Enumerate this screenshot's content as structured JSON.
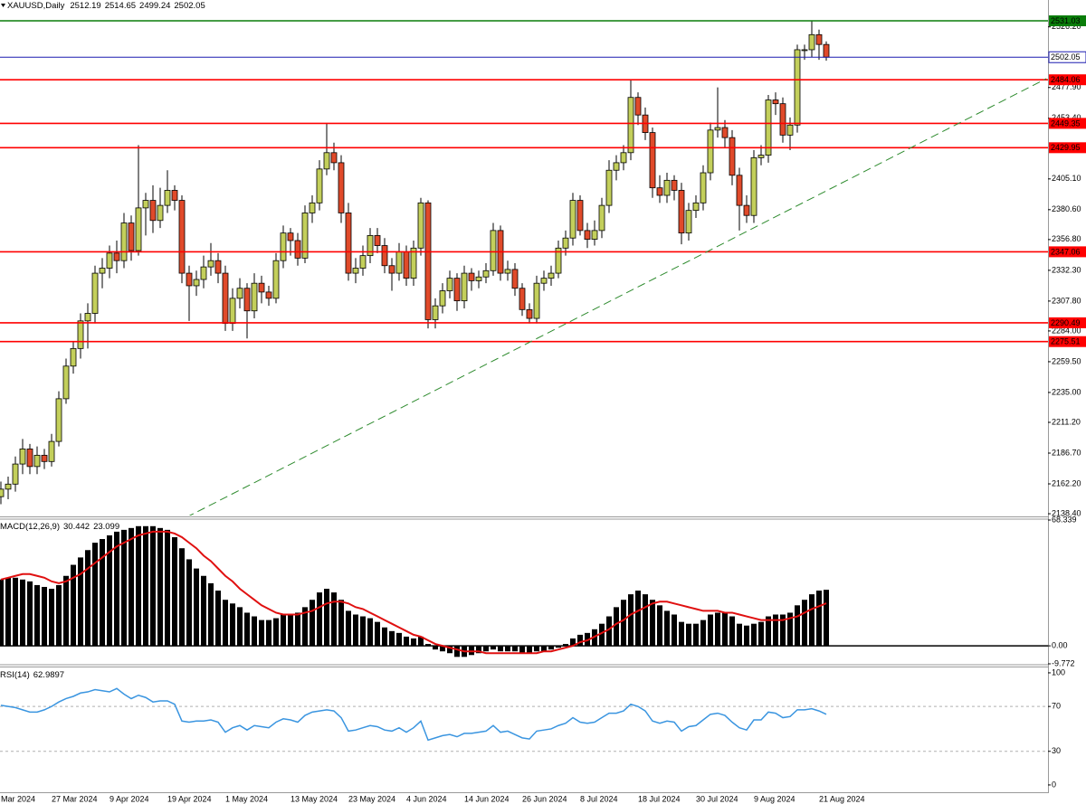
{
  "chart_data": [
    {
      "type": "candlestick",
      "title": "XAUUSD,Daily",
      "categories": [
        "Mar 2024",
        null,
        null,
        null,
        null,
        null,
        null,
        "27 Mar 2024",
        null,
        null,
        null,
        null,
        null,
        null,
        null,
        "9 Apr 2024",
        null,
        null,
        null,
        null,
        null,
        null,
        null,
        "19 Apr 2024",
        null,
        null,
        null,
        null,
        null,
        null,
        null,
        "1 May 2024",
        null,
        null,
        null,
        null,
        null,
        null,
        null,
        null,
        "13 May 2024",
        null,
        null,
        null,
        null,
        null,
        null,
        null,
        "23 May 2024",
        null,
        null,
        null,
        null,
        null,
        null,
        null,
        "4 Jun 2024",
        null,
        null,
        null,
        null,
        null,
        null,
        null,
        "14 Jun 2024",
        null,
        null,
        null,
        null,
        null,
        null,
        null,
        "26 Jun 2024",
        null,
        null,
        null,
        null,
        null,
        null,
        null,
        "8 Jul 2024",
        null,
        null,
        null,
        null,
        null,
        null,
        null,
        "18 Jul 2024",
        null,
        null,
        null,
        null,
        null,
        null,
        null,
        "30 Jul 2024",
        null,
        null,
        null,
        null,
        null,
        null,
        null,
        "9 Aug 2024",
        null,
        null,
        null,
        null,
        null,
        null,
        null,
        null,
        "21 Aug 2024",
        null
      ],
      "open": [
        2152,
        2158,
        2162,
        2178,
        2190,
        2176,
        2185,
        2180,
        2196,
        2230,
        2256,
        2270,
        2292,
        2298,
        2330,
        2334,
        2346,
        2340,
        2370,
        2348,
        2382,
        2388,
        2372,
        2384,
        2396,
        2388,
        2330,
        2320,
        2325,
        2335,
        2340,
        2330,
        2290,
        2310,
        2318,
        2300,
        2322,
        2315,
        2310,
        2340,
        2362,
        2356,
        2342,
        2378,
        2386,
        2413,
        2426,
        2418,
        2378,
        2330,
        2334,
        2344,
        2360,
        2352,
        2336,
        2330,
        2347,
        2326,
        2350,
        2386,
        2293,
        2304,
        2316,
        2326,
        2308,
        2330,
        2324,
        2327,
        2332,
        2364,
        2330,
        2333,
        2318,
        2301,
        2294,
        2322,
        2326,
        2330,
        2350,
        2358,
        2388,
        2364,
        2357,
        2364,
        2384,
        2412,
        2418,
        2426,
        2470,
        2456,
        2442,
        2398,
        2392,
        2404,
        2396,
        2362,
        2380,
        2386,
        2410,
        2444,
        2446,
        2438,
        2408,
        2384,
        2376,
        2422,
        2424,
        2468,
        2465,
        2440,
        2448,
        2508,
        2508,
        2520,
        2512.19
      ],
      "high": [
        2164,
        2168,
        2184,
        2198,
        2194,
        2192,
        2190,
        2202,
        2236,
        2262,
        2276,
        2298,
        2306,
        2336,
        2342,
        2352,
        2356,
        2378,
        2376,
        2432,
        2394,
        2400,
        2398,
        2412,
        2400,
        2392,
        2336,
        2332,
        2344,
        2354,
        2346,
        2336,
        2318,
        2326,
        2322,
        2330,
        2328,
        2320,
        2346,
        2368,
        2366,
        2362,
        2384,
        2392,
        2420,
        2449,
        2434,
        2424,
        2386,
        2342,
        2352,
        2366,
        2366,
        2358,
        2342,
        2354,
        2352,
        2356,
        2390,
        2388,
        2310,
        2322,
        2332,
        2330,
        2336,
        2334,
        2332,
        2338,
        2370,
        2368,
        2340,
        2338,
        2322,
        2306,
        2328,
        2332,
        2336,
        2356,
        2364,
        2394,
        2392,
        2370,
        2372,
        2390,
        2420,
        2424,
        2432,
        2484,
        2474,
        2462,
        2446,
        2408,
        2410,
        2408,
        2402,
        2386,
        2392,
        2416,
        2450,
        2478,
        2452,
        2444,
        2414,
        2392,
        2428,
        2432,
        2472,
        2474,
        2470,
        2454,
        2512,
        2512,
        2531,
        2524,
        2514.65
      ],
      "low": [
        2146,
        2150,
        2156,
        2170,
        2170,
        2170,
        2174,
        2176,
        2192,
        2226,
        2250,
        2262,
        2270,
        2290,
        2318,
        2326,
        2330,
        2334,
        2340,
        2344,
        2360,
        2362,
        2366,
        2378,
        2380,
        2322,
        2292,
        2312,
        2318,
        2328,
        2322,
        2284,
        2284,
        2302,
        2278,
        2294,
        2306,
        2304,
        2306,
        2334,
        2344,
        2336,
        2338,
        2370,
        2380,
        2408,
        2412,
        2370,
        2324,
        2322,
        2328,
        2338,
        2346,
        2330,
        2316,
        2324,
        2320,
        2320,
        2344,
        2286,
        2286,
        2298,
        2310,
        2300,
        2302,
        2316,
        2318,
        2322,
        2328,
        2324,
        2324,
        2312,
        2296,
        2290,
        2290,
        2316,
        2320,
        2326,
        2344,
        2352,
        2360,
        2350,
        2352,
        2358,
        2378,
        2404,
        2412,
        2420,
        2448,
        2436,
        2390,
        2386,
        2386,
        2388,
        2353,
        2356,
        2374,
        2380,
        2404,
        2438,
        2430,
        2400,
        2364,
        2370,
        2370,
        2416,
        2418,
        2456,
        2434,
        2428,
        2442,
        2500,
        2502,
        2500,
        2499.24
      ],
      "close": [
        2158,
        2162,
        2178,
        2190,
        2176,
        2185,
        2180,
        2196,
        2230,
        2256,
        2270,
        2292,
        2298,
        2330,
        2334,
        2346,
        2340,
        2370,
        2348,
        2382,
        2388,
        2372,
        2384,
        2396,
        2388,
        2330,
        2320,
        2325,
        2335,
        2340,
        2330,
        2290,
        2310,
        2318,
        2300,
        2322,
        2315,
        2310,
        2340,
        2362,
        2356,
        2342,
        2378,
        2386,
        2413,
        2426,
        2418,
        2378,
        2330,
        2334,
        2344,
        2360,
        2352,
        2336,
        2330,
        2347,
        2326,
        2350,
        2386,
        2293,
        2304,
        2316,
        2326,
        2308,
        2330,
        2324,
        2327,
        2332,
        2364,
        2330,
        2333,
        2318,
        2301,
        2294,
        2322,
        2326,
        2330,
        2350,
        2358,
        2388,
        2364,
        2357,
        2364,
        2384,
        2412,
        2418,
        2426,
        2470,
        2456,
        2442,
        2398,
        2392,
        2404,
        2396,
        2362,
        2380,
        2386,
        2410,
        2444,
        2446,
        2438,
        2408,
        2384,
        2376,
        2422,
        2424,
        2468,
        2465,
        2440,
        2448,
        2508,
        2508,
        2520,
        2512.19,
        2502.05
      ],
      "up_color": "#c3cf5b",
      "down_color": "#e04a2a",
      "ylim": [
        2137,
        2547.6
      ],
      "yticks": [
        {
          "value": 2526.2,
          "label": "2526.20"
        },
        {
          "value": 2477.9,
          "label": "2477.90"
        },
        {
          "value": 2453.4,
          "label": "2453.40"
        },
        {
          "value": 2405.1,
          "label": "2405.10"
        },
        {
          "value": 2380.6,
          "label": "2380.60"
        },
        {
          "value": 2356.8,
          "label": "2356.80"
        },
        {
          "value": 2332.3,
          "label": "2332.30"
        },
        {
          "value": 2307.8,
          "label": "2307.80"
        },
        {
          "value": 2284,
          "label": "2284.00"
        },
        {
          "value": 2259.5,
          "label": "2259.50"
        },
        {
          "value": 2235,
          "label": "2235.00"
        },
        {
          "value": 2211.2,
          "label": "2211.20"
        },
        {
          "value": 2186.7,
          "label": "2186.70"
        },
        {
          "value": 2162.2,
          "label": "2162.20"
        },
        {
          "value": 2138.4,
          "label": "2138.40"
        }
      ],
      "levels": [
        {
          "value": 2531.03,
          "color": "#0a7d0a"
        },
        {
          "value": 2502.05,
          "color": "#1c1cb0",
          "label_fill": "#ffffff"
        },
        {
          "value": 2484.06,
          "color": "#ff0000"
        },
        {
          "value": 2449.35,
          "color": "#ff0000"
        },
        {
          "value": 2429.95,
          "color": "#ff0000"
        },
        {
          "value": 2347.06,
          "color": "#ff0000"
        },
        {
          "value": 2290.49,
          "color": "#ff0000"
        },
        {
          "value": 2275.51,
          "color": "#ff0000"
        }
      ],
      "trendline": {
        "x": [
          25.6,
          144.4
        ],
        "y": [
          2135.5,
          2485
        ],
        "color": "#2e8b2e"
      }
    },
    {
      "type": "macd",
      "title": "MACD(12,26,9)",
      "histogram": [
        36,
        37,
        37,
        36,
        35,
        33,
        32,
        31,
        33,
        38,
        44,
        48,
        52,
        56,
        58,
        60,
        62,
        63,
        64,
        65,
        65,
        65,
        64,
        63,
        59,
        53,
        47,
        42,
        38,
        34,
        30,
        25,
        23,
        21,
        18,
        16,
        14,
        14,
        15,
        17,
        17,
        18,
        21,
        25,
        29,
        31,
        29,
        25,
        19,
        17,
        16,
        15,
        13,
        10,
        8,
        7,
        5,
        4,
        5,
        1,
        -2,
        -3,
        -4,
        -6,
        -6,
        -5,
        -4,
        -3,
        -2,
        -3,
        -3,
        -3,
        -4,
        -4,
        -3,
        -3,
        -2,
        -1,
        1,
        4,
        6,
        7,
        9,
        12,
        16,
        21,
        25,
        28,
        30,
        28,
        25,
        22,
        19,
        17,
        13,
        12,
        12,
        14,
        17,
        18,
        18,
        16,
        12,
        11,
        12,
        13,
        16,
        17,
        17,
        18,
        22,
        25,
        28,
        30,
        30.442
      ],
      "signal": [
        36,
        37,
        38,
        39,
        39,
        38,
        37,
        35,
        34,
        35,
        37,
        39,
        42,
        45,
        48,
        51,
        54,
        56,
        58,
        60,
        61,
        62,
        62,
        62,
        61,
        59,
        56,
        53,
        49,
        46,
        42,
        38,
        35,
        31,
        28,
        25,
        22,
        20,
        18,
        17,
        17,
        17,
        18,
        19,
        21,
        23,
        24,
        24,
        23,
        21,
        20,
        18,
        16,
        14,
        12,
        10,
        8,
        6,
        5,
        3,
        1,
        0,
        -1,
        -2,
        -3,
        -3,
        -3,
        -4,
        -4,
        -4,
        -4,
        -4,
        -4,
        -4,
        -4,
        -3,
        -3,
        -2,
        -1,
        0,
        2,
        3,
        5,
        7,
        9,
        12,
        14,
        17,
        19,
        21,
        23,
        24,
        24,
        23,
        22,
        21,
        20,
        19,
        19,
        19,
        18,
        18,
        17,
        16,
        15,
        14,
        14,
        14,
        14,
        15,
        16,
        18,
        20,
        21.5,
        23.099
      ],
      "histogram_color": "#000000",
      "signal_color": "#e01010",
      "zero_line": true,
      "ylim": [
        -9.772,
        68.339
      ],
      "yticks": [
        68.339,
        {
          "value": 0,
          "label": "0.00"
        },
        -9.772
      ]
    },
    {
      "type": "rsi",
      "title": "RSI(14)",
      "values": [
        71,
        70,
        69,
        67,
        65,
        65,
        67,
        70,
        74,
        77,
        79,
        82,
        83,
        85,
        84,
        83,
        86,
        81,
        77,
        80,
        78,
        74,
        75,
        75,
        72,
        57,
        56,
        57,
        57,
        58,
        56,
        47,
        51,
        53,
        49,
        53,
        52,
        51,
        56,
        59,
        58,
        56,
        62,
        65,
        66,
        67,
        66,
        60,
        48,
        49,
        51,
        53,
        52,
        49,
        48,
        51,
        47,
        51,
        57,
        40,
        42,
        44,
        45,
        43,
        46,
        46,
        47,
        48,
        53,
        47,
        48,
        45,
        42,
        41,
        48,
        49,
        50,
        53,
        55,
        60,
        56,
        55,
        56,
        60,
        64,
        64,
        66,
        72,
        70,
        66,
        57,
        55,
        57,
        56,
        48,
        52,
        53,
        58,
        63,
        64,
        62,
        56,
        51,
        49,
        58,
        58,
        65,
        64,
        60,
        61,
        67,
        67,
        68,
        66,
        62.9897
      ],
      "color": "#3a95e0",
      "ylim": [
        -6.5,
        104.8
      ],
      "yticks": [
        100,
        70,
        30,
        0
      ],
      "levels": [
        70,
        30
      ]
    }
  ]
}
